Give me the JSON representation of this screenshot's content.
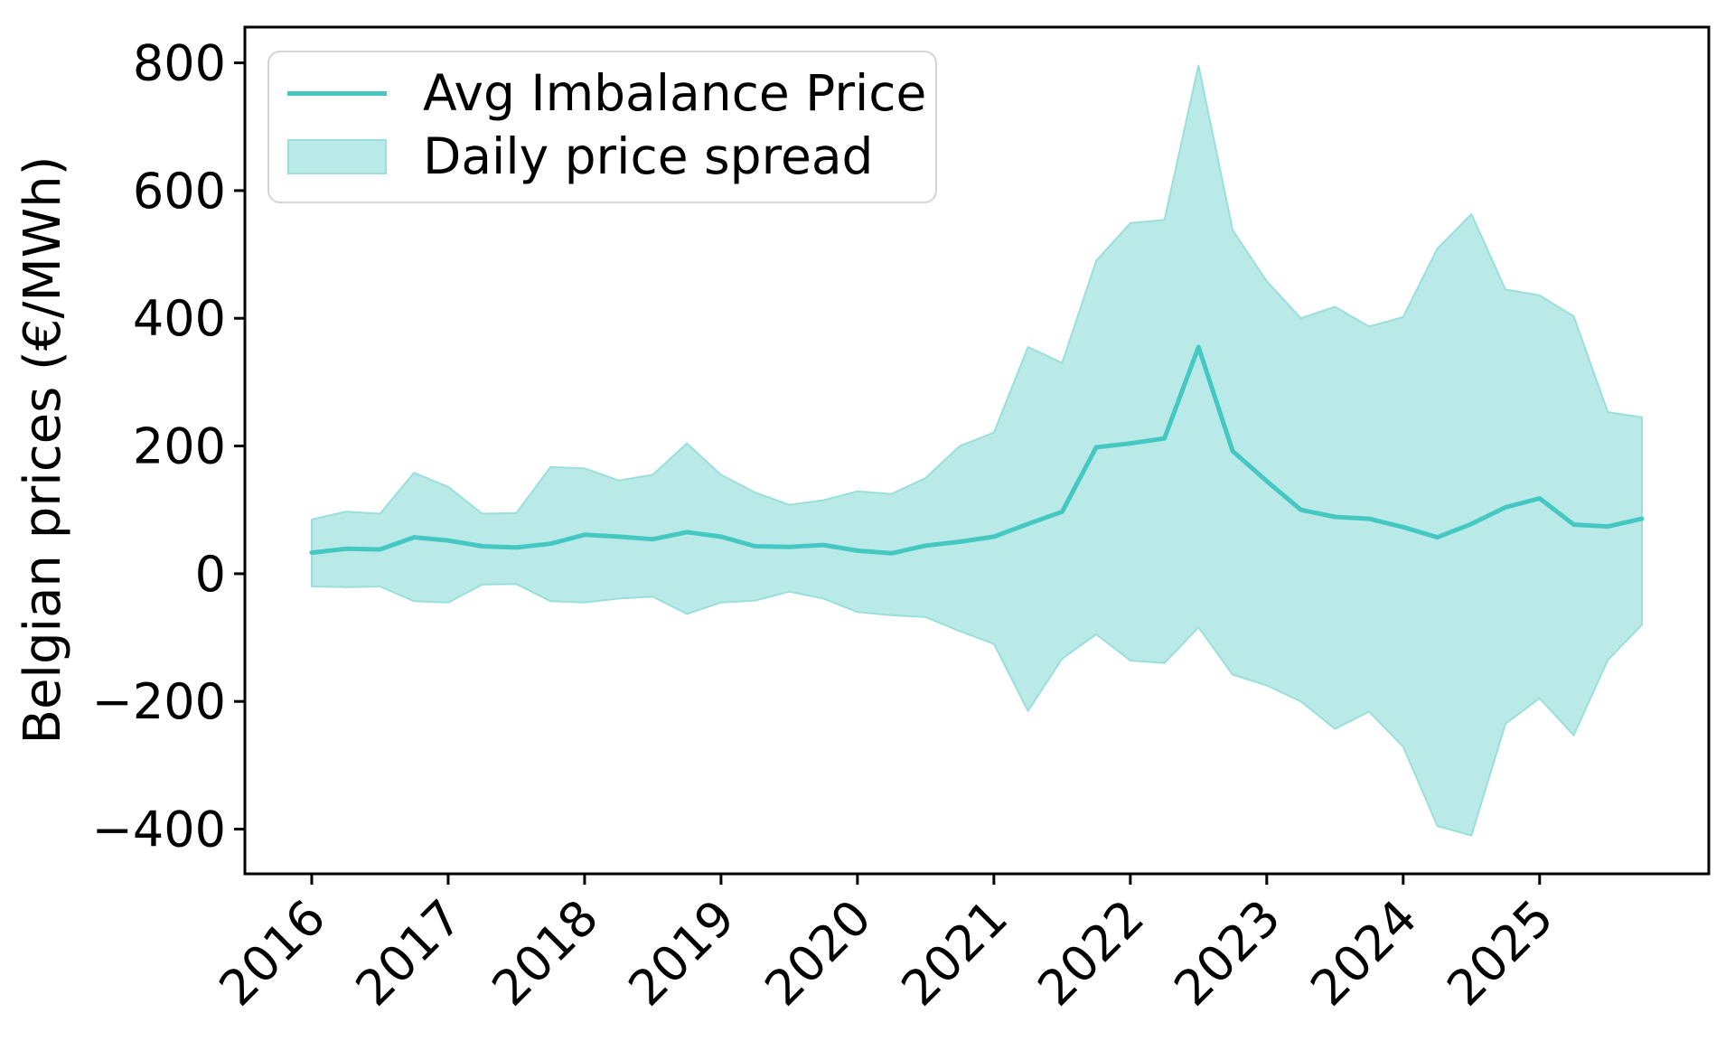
{
  "chart_data": {
    "type": "line",
    "ylabel": "Belgian prices (€/MWh)",
    "xlabel": "",
    "legend_position": "upper left",
    "grid": false,
    "x": [
      2016.0,
      2016.25,
      2016.5,
      2016.75,
      2017.0,
      2017.25,
      2017.5,
      2017.75,
      2018.0,
      2018.25,
      2018.5,
      2018.75,
      2019.0,
      2019.25,
      2019.5,
      2019.75,
      2020.0,
      2020.25,
      2020.5,
      2020.75,
      2021.0,
      2021.25,
      2021.5,
      2021.75,
      2022.0,
      2022.25,
      2022.5,
      2022.75,
      2023.0,
      2023.25,
      2023.5,
      2023.75,
      2024.0,
      2024.25,
      2024.5,
      2024.75,
      2025.0,
      2025.25,
      2025.5,
      2025.75
    ],
    "series": [
      {
        "name": "Avg Imbalance Price",
        "color": "#45c8c2",
        "values": [
          33,
          39,
          38,
          57,
          52,
          43,
          41,
          47,
          61,
          58,
          54,
          65,
          58,
          43,
          42,
          45,
          36,
          32,
          44,
          50,
          58,
          78,
          97,
          198,
          204,
          212,
          355,
          192,
          145,
          100,
          89,
          86,
          73,
          57,
          78,
          104,
          118,
          77,
          74,
          86
        ]
      }
    ],
    "band": {
      "name": "Daily price spread",
      "fill": "#b9eae7",
      "edge": "#9adfdb",
      "upper": [
        85,
        97,
        94,
        158,
        136,
        94,
        95,
        167,
        165,
        146,
        155,
        204,
        155,
        127,
        108,
        115,
        129,
        125,
        150,
        200,
        221,
        355,
        330,
        490,
        549,
        554,
        796,
        538,
        458,
        400,
        418,
        387,
        402,
        509,
        563,
        445,
        436,
        403,
        253,
        245
      ],
      "lower": [
        -20,
        -21,
        -20,
        -43,
        -45,
        -17,
        -16,
        -43,
        -45,
        -39,
        -36,
        -63,
        -45,
        -42,
        -28,
        -39,
        -60,
        -65,
        -68,
        -90,
        -110,
        -215,
        -133,
        -95,
        -136,
        -140,
        -84,
        -158,
        -175,
        -200,
        -243,
        -216,
        -271,
        -395,
        -410,
        -235,
        -195,
        -253,
        -135,
        -80
      ]
    },
    "xticks": [
      2016,
      2017,
      2018,
      2019,
      2020,
      2021,
      2022,
      2023,
      2024,
      2025
    ],
    "yticks": [
      800,
      600,
      400,
      200,
      0,
      -200,
      -400
    ],
    "xlim": [
      2015.51,
      2026.24
    ],
    "ylim": [
      -470,
      856
    ]
  }
}
